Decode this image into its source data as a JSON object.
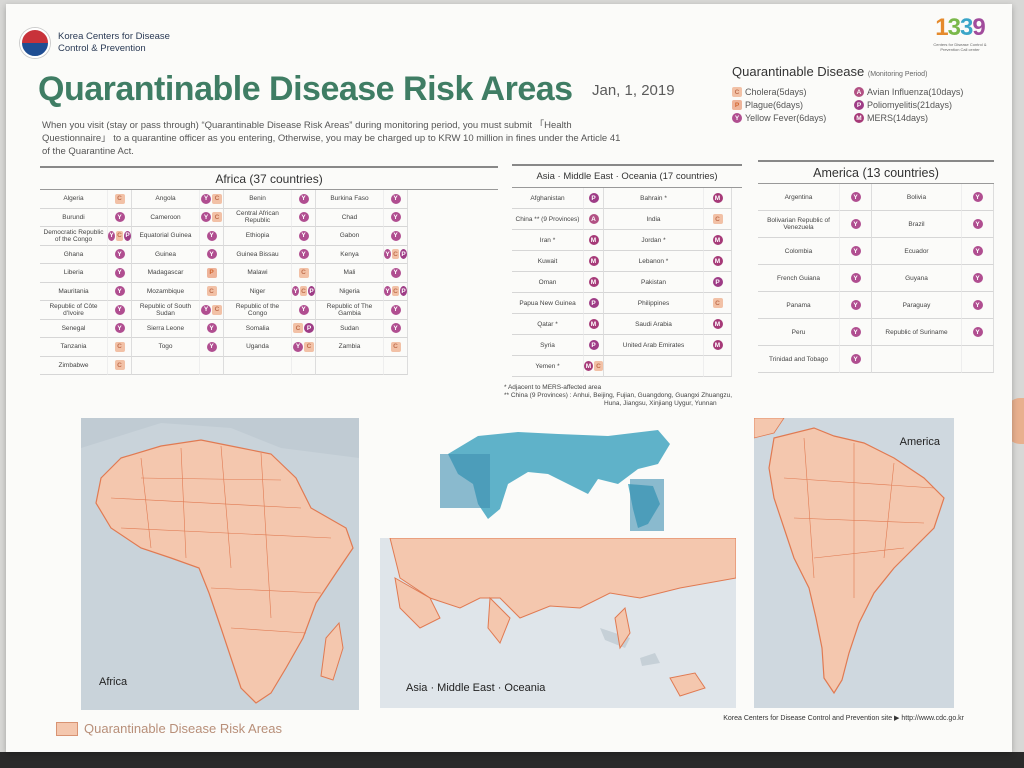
{
  "org": {
    "line1": "Korea Centers for Disease",
    "line2": "Control & Prevention"
  },
  "brand": {
    "number": [
      "1",
      "3",
      "3",
      "9"
    ],
    "caption": "Centers for Disease Control & Prevention Call center"
  },
  "title": "Quarantinable Disease Risk Areas",
  "date": "Jan, 1, 2019",
  "intro": "When you visit (stay or pass through) “Quarantinable Disease Risk Areas” during monitoring period, you must submit 「Health Questionnaire」 to a quarantine officer as you entering, Otherwise, you may be charged up to KRW 10 million in fines under the Article 41 of the Quarantine Act.",
  "legend": {
    "title": "Quarantinable Disease",
    "subtitle": "(Monitoring Period)",
    "items": [
      {
        "code": "C",
        "label": "Cholera(5days)"
      },
      {
        "code": "A",
        "label": "Avian Influenza(10days)"
      },
      {
        "code": "Pl",
        "label": "Plague(6days)"
      },
      {
        "code": "P",
        "label": "Poliomyelitis(21days)"
      },
      {
        "code": "Y",
        "label": "Yellow Fever(6days)"
      },
      {
        "code": "M",
        "label": "MERS(14days)"
      }
    ]
  },
  "africa": {
    "header": "Africa (37 countries)",
    "rows": [
      [
        [
          "Algeria",
          [
            "C"
          ]
        ],
        [
          "Angola",
          [
            "Y",
            "C"
          ]
        ],
        [
          "Benin",
          [
            "Y"
          ]
        ],
        [
          "Burkina Faso",
          [
            "Y"
          ]
        ]
      ],
      [
        [
          "Burundi",
          [
            "Y"
          ]
        ],
        [
          "Cameroon",
          [
            "Y",
            "C"
          ]
        ],
        [
          "Central African Republic",
          [
            "Y"
          ]
        ],
        [
          "Chad",
          [
            "Y"
          ]
        ]
      ],
      [
        [
          "Democratic Republic of the Congo",
          [
            "Y",
            "C",
            "P"
          ]
        ],
        [
          "Equatorial Guinea",
          [
            "Y"
          ]
        ],
        [
          "Ethiopia",
          [
            "Y"
          ]
        ],
        [
          "Gabon",
          [
            "Y"
          ]
        ]
      ],
      [
        [
          "Ghana",
          [
            "Y"
          ]
        ],
        [
          "Guinea",
          [
            "Y"
          ]
        ],
        [
          "Guinea Bissau",
          [
            "Y"
          ]
        ],
        [
          "Kenya",
          [
            "Y",
            "C",
            "P"
          ]
        ]
      ],
      [
        [
          "Liberia",
          [
            "Y"
          ]
        ],
        [
          "Madagascar",
          [
            "Pl"
          ]
        ],
        [
          "Malawi",
          [
            "C"
          ]
        ],
        [
          "Mali",
          [
            "Y"
          ]
        ]
      ],
      [
        [
          "Mauritania",
          [
            "Y"
          ]
        ],
        [
          "Mozambique",
          [
            "C"
          ]
        ],
        [
          "Niger",
          [
            "Y",
            "C",
            "P"
          ]
        ],
        [
          "Nigeria",
          [
            "Y",
            "C",
            "P"
          ]
        ]
      ],
      [
        [
          "Republic of Côte d'Ivoire",
          [
            "Y"
          ]
        ],
        [
          "Republic of South Sudan",
          [
            "Y",
            "C"
          ]
        ],
        [
          "Republic of the Congo",
          [
            "Y"
          ]
        ],
        [
          "Republic of The Gambia",
          [
            "Y"
          ]
        ]
      ],
      [
        [
          "Senegal",
          [
            "Y"
          ]
        ],
        [
          "Sierra Leone",
          [
            "Y"
          ]
        ],
        [
          "Somalia",
          [
            "C",
            "P"
          ]
        ],
        [
          "Sudan",
          [
            "Y"
          ]
        ]
      ],
      [
        [
          "Tanzania",
          [
            "C"
          ]
        ],
        [
          "Togo",
          [
            "Y"
          ]
        ],
        [
          "Uganda",
          [
            "Y",
            "C"
          ]
        ],
        [
          "Zambia",
          [
            "C"
          ]
        ]
      ],
      [
        [
          "Zimbabwe",
          [
            "C"
          ]
        ],
        [
          "",
          []
        ],
        [
          "",
          []
        ],
        [
          "",
          []
        ]
      ]
    ]
  },
  "asia": {
    "header": "Asia · Middle East · Oceania (17 countries)",
    "rows": [
      [
        [
          "Afghanistan",
          [
            "P"
          ]
        ],
        [
          "Bahrain *",
          [
            "M"
          ]
        ]
      ],
      [
        [
          "China ** (9 Provinces)",
          [
            "A"
          ]
        ],
        [
          "India",
          [
            "C"
          ]
        ]
      ],
      [
        [
          "Iran *",
          [
            "M"
          ]
        ],
        [
          "Jordan *",
          [
            "M"
          ]
        ]
      ],
      [
        [
          "Kuwait",
          [
            "M"
          ]
        ],
        [
          "Lebanon *",
          [
            "M"
          ]
        ]
      ],
      [
        [
          "Oman",
          [
            "M"
          ]
        ],
        [
          "Pakistan",
          [
            "P"
          ]
        ]
      ],
      [
        [
          "Papua New Guinea",
          [
            "P"
          ]
        ],
        [
          "Philippines",
          [
            "C"
          ]
        ]
      ],
      [
        [
          "Qatar *",
          [
            "M"
          ]
        ],
        [
          "Saudi Arabia",
          [
            "M"
          ]
        ]
      ],
      [
        [
          "Syria",
          [
            "P"
          ]
        ],
        [
          "United Arab Emirates",
          [
            "M"
          ]
        ]
      ],
      [
        [
          "Yemen *",
          [
            "M",
            "C"
          ]
        ],
        [
          "",
          []
        ]
      ]
    ]
  },
  "america": {
    "header": "America (13 countries)",
    "rows": [
      [
        [
          "Argentina",
          [
            "Y"
          ]
        ],
        [
          "Bolivia",
          [
            "Y"
          ]
        ]
      ],
      [
        [
          "Bolivarian Republic of Venezuela",
          [
            "Y"
          ]
        ],
        [
          "Brazil",
          [
            "Y"
          ]
        ]
      ],
      [
        [
          "Colombia",
          [
            "Y"
          ]
        ],
        [
          "Ecuador",
          [
            "Y"
          ]
        ]
      ],
      [
        [
          "French Guiana",
          [
            "Y"
          ]
        ],
        [
          "Guyana",
          [
            "Y"
          ]
        ]
      ],
      [
        [
          "Panama",
          [
            "Y"
          ]
        ],
        [
          "Paraguay",
          [
            "Y"
          ]
        ]
      ],
      [
        [
          "Peru",
          [
            "Y"
          ]
        ],
        [
          "Republic of Suriname",
          [
            "Y"
          ]
        ]
      ],
      [
        [
          "Trinidad and Tobago",
          [
            "Y"
          ]
        ],
        [
          "",
          []
        ]
      ]
    ]
  },
  "notes": {
    "n1": "* Adjacent to MERS-affected area",
    "n2": "** China (9 Provinces) : Anhui, Beijing, Fujian, Guangdong, Guangxi Zhuangzu,",
    "n3": "Huna, Jiangsu, Xinjiang Uygur, Yunnan"
  },
  "maps": {
    "africa": "Africa",
    "asia": "Asia · Middle East · Oceania",
    "america": "America"
  },
  "bottom_legend": "Quarantinable Disease Risk Areas",
  "site": "Korea Centers for Disease Control and Prevention site ▶ http://www.cdc.go.kr",
  "colors": {
    "title": "#3f7d64",
    "risk_fill": "#f4c7ae",
    "risk_line": "#e07a52",
    "badge": "#b04e90"
  }
}
